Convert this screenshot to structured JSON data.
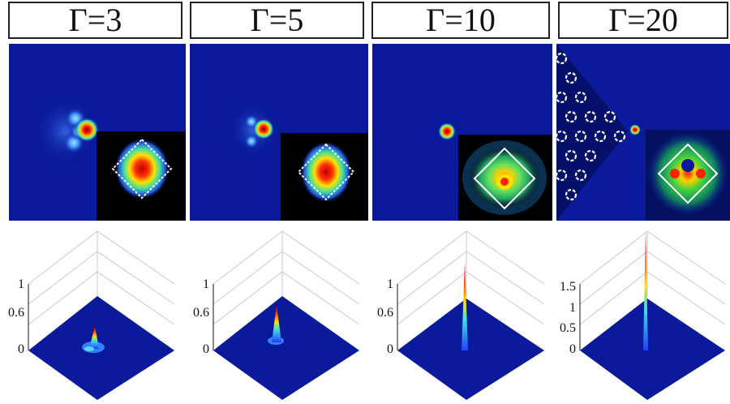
{
  "columns": [
    {
      "label": "Γ=3",
      "peak": 0.42,
      "ticks": [
        "1",
        "0.6",
        "0"
      ]
    },
    {
      "label": "Γ=5",
      "peak": 0.72,
      "ticks": [
        "1",
        "0.6",
        "0"
      ]
    },
    {
      "label": "Γ=10",
      "peak": 1.12,
      "ticks": [
        "1",
        "0.6",
        "0"
      ]
    },
    {
      "label": "Γ=20",
      "peak": 1.8,
      "ticks": [
        "1.5",
        "1",
        "0.5",
        "0"
      ]
    }
  ],
  "colors": {
    "background_blue": "#0a1a9a",
    "inset_black": "#000000",
    "inset_border": "#ffffff"
  }
}
